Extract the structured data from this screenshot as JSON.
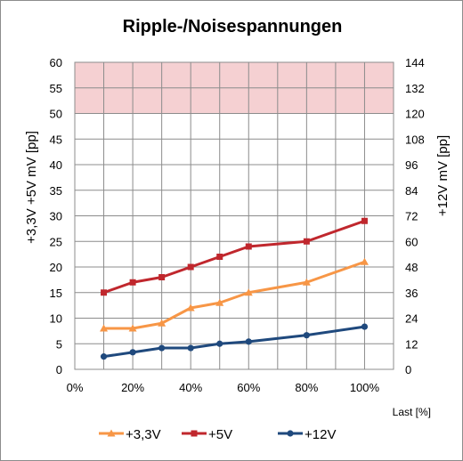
{
  "chart_data": {
    "type": "line",
    "title": "Ripple-/Noisespannungen",
    "xlabel": "Last [%]",
    "ylabel_left": "+3,3V +5V    mV [pp]",
    "ylabel_right": "+12V    mV [pp]",
    "x_ticks": [
      "0%",
      "20%",
      "40%",
      "60%",
      "80%",
      "100%"
    ],
    "xlim": [
      0,
      110
    ],
    "ylim_left": [
      0,
      60
    ],
    "ylim_right": [
      0,
      144
    ],
    "left_ticks": [
      "0",
      "5",
      "10",
      "15",
      "20",
      "25",
      "30",
      "35",
      "40",
      "45",
      "50",
      "55",
      "60"
    ],
    "right_ticks": [
      "0",
      "12",
      "24",
      "36",
      "48",
      "60",
      "72",
      "84",
      "96",
      "108",
      "120",
      "132",
      "144"
    ],
    "limit_band_left": [
      50,
      60
    ],
    "grid": true,
    "legend_position": "bottom",
    "series": [
      {
        "name": "+3,3V",
        "axis": "left",
        "color": "#f79646",
        "marker": "triangle",
        "x": [
          10,
          20,
          30,
          40,
          50,
          60,
          80,
          100
        ],
        "values": [
          8,
          8,
          9,
          12,
          13,
          15,
          17,
          21
        ]
      },
      {
        "name": "+5V",
        "axis": "left",
        "color": "#c0272d",
        "marker": "square",
        "x": [
          10,
          20,
          30,
          40,
          50,
          60,
          80,
          100
        ],
        "values": [
          15,
          17,
          18,
          20,
          22,
          24,
          25,
          29
        ]
      },
      {
        "name": "+12V",
        "axis": "right",
        "color": "#1f497d",
        "marker": "circle",
        "x": [
          10,
          20,
          30,
          40,
          50,
          60,
          80,
          100
        ],
        "values": [
          6,
          8,
          10,
          10,
          12,
          13,
          16,
          20
        ]
      }
    ],
    "colors": {
      "band": "#f5d0d2",
      "grid": "#8c8c8c"
    }
  }
}
